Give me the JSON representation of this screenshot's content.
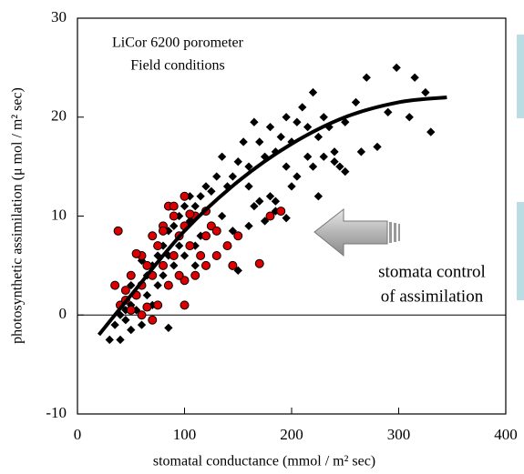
{
  "chart_data": {
    "type": "scatter",
    "annotations": [
      "LiCor 6200 porometer",
      "Field conditions",
      "stomata control",
      "of assimilation"
    ],
    "xlabel": "stomatal conductance (mmol / m² sec)",
    "ylabel": "photosynthetic assimilation (μ mol / m² sec)",
    "xlim": [
      0,
      400
    ],
    "xticks": [
      0,
      100,
      200,
      300,
      400
    ],
    "ylim": [
      -10,
      30
    ],
    "yticks": [
      -10,
      0,
      10,
      20,
      30
    ],
    "hlines": [
      0
    ],
    "series": [
      {
        "type": "scatter",
        "marker": "diamond",
        "color": "#000000",
        "x": [
          298,
          315,
          270,
          325,
          310,
          330,
          290,
          280,
          260,
          265,
          250,
          245,
          250,
          240,
          235,
          230,
          220,
          215,
          225,
          210,
          205,
          200,
          195,
          190,
          180,
          185,
          175,
          170,
          165,
          160,
          155,
          150,
          145,
          140,
          135,
          130,
          125,
          120,
          115,
          110,
          105,
          100,
          95,
          90,
          85,
          80,
          75,
          70,
          65,
          60,
          55,
          50,
          45,
          40,
          35,
          30,
          40,
          50,
          60,
          85,
          55,
          70,
          65,
          75,
          80,
          90,
          100,
          110,
          120,
          130,
          140,
          150,
          150,
          160,
          165,
          170,
          180,
          160,
          175,
          185,
          195,
          205,
          215,
          220,
          230,
          225,
          240,
          185,
          200,
          195,
          145,
          135,
          125,
          115,
          105,
          95,
          85,
          110,
          60,
          50,
          45
        ],
        "values": [
          25,
          24,
          24,
          22.5,
          20,
          18.5,
          20.5,
          17,
          21.5,
          16.5,
          19.5,
          15,
          14.5,
          16.5,
          19,
          20,
          22.5,
          19,
          18,
          21,
          19.5,
          17.5,
          20,
          18,
          19,
          16.5,
          16,
          17.5,
          19.5,
          15,
          17.5,
          15.5,
          14,
          13,
          16,
          14,
          12.5,
          13,
          12,
          11,
          12,
          11,
          10,
          9,
          8.5,
          7,
          6,
          5,
          4,
          3,
          2,
          1,
          0.5,
          0,
          -1,
          -2.5,
          -2.5,
          -1.5,
          -1,
          -1.3,
          0.5,
          1,
          2,
          3,
          4,
          5,
          6,
          7,
          8,
          6,
          7,
          4.5,
          8,
          9,
          11,
          11.5,
          12,
          13,
          9.5,
          11.5,
          15,
          14,
          16,
          15,
          16,
          12,
          15.5,
          10.5,
          13,
          9.8,
          8.5,
          10,
          9,
          8,
          9.5,
          7,
          6,
          5,
          5.5,
          3,
          -0.5
        ]
      },
      {
        "type": "scatter",
        "marker": "circle",
        "color": "#dd0000",
        "x": [
          40,
          50,
          55,
          60,
          65,
          70,
          75,
          80,
          85,
          90,
          95,
          100,
          105,
          110,
          115,
          120,
          125,
          130,
          140,
          145,
          150,
          170,
          180,
          190,
          38,
          35,
          45,
          50,
          60,
          70,
          80,
          90,
          100,
          100,
          75,
          85,
          65,
          55,
          110,
          120,
          130,
          80,
          90,
          100,
          60,
          70,
          45,
          105,
          95,
          120
        ],
        "values": [
          1,
          4,
          2,
          6,
          5,
          8,
          7,
          9,
          11,
          10,
          8,
          9,
          7,
          10,
          6,
          8,
          9,
          6,
          7,
          5,
          8,
          5.2,
          10,
          10.5,
          8.5,
          3,
          2.5,
          0.5,
          3,
          4,
          5,
          6,
          1,
          3.5,
          1,
          3,
          0.8,
          6.2,
          4,
          5,
          8.5,
          8.5,
          11,
          12,
          0,
          -0.5,
          1.5,
          10.2,
          4,
          10.5
        ]
      },
      {
        "type": "line",
        "color": "#000000",
        "x": [
          20,
          50,
          100,
          150,
          200,
          250,
          300,
          345
        ],
        "values": [
          -2,
          2,
          8.5,
          13.5,
          17.3,
          20,
          21.5,
          22
        ]
      }
    ]
  }
}
